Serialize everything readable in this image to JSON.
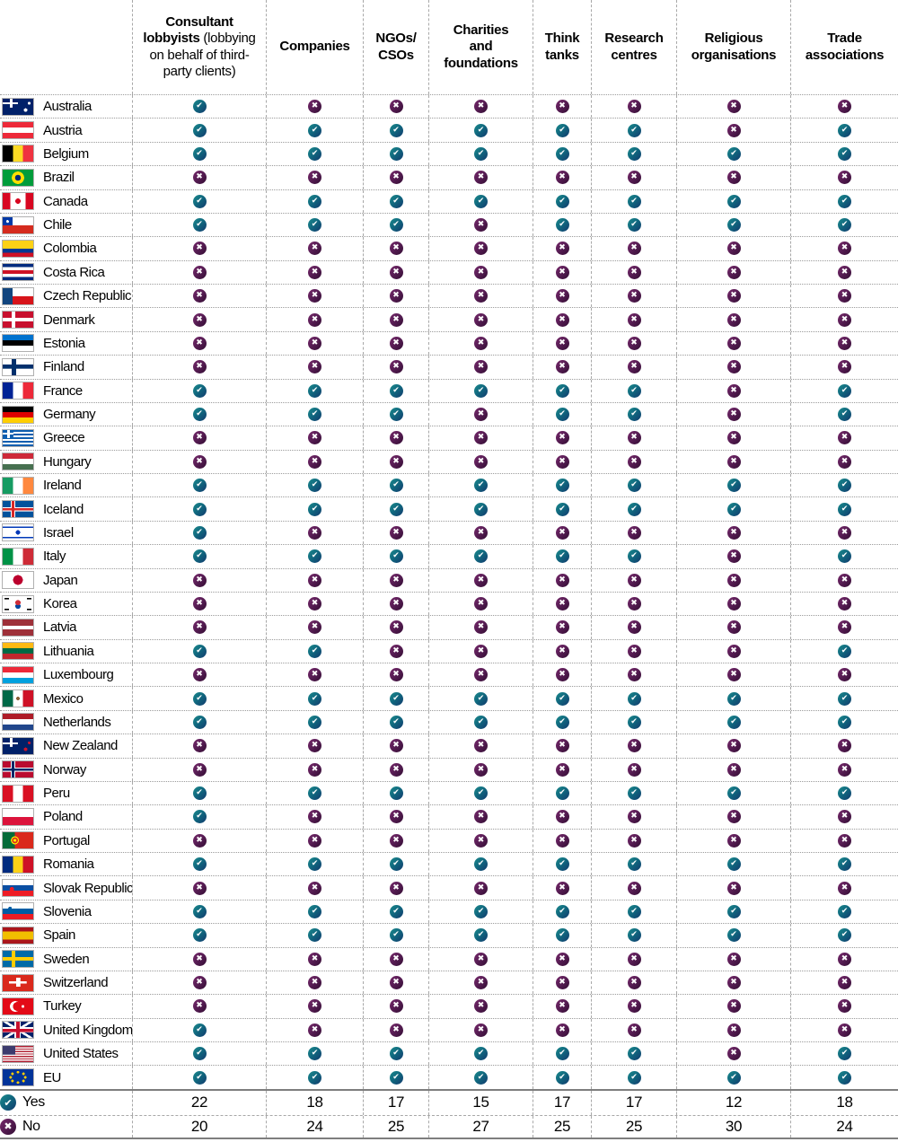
{
  "chart_data": {
    "type": "table",
    "title": "",
    "legend_position": "bottom",
    "columns": [
      {
        "id": "consultant-lobbyists",
        "label": "Consultant lobbyists",
        "sub": "(lobbying on behalf of third-party clients)"
      },
      {
        "id": "companies",
        "label": "Companies",
        "sub": ""
      },
      {
        "id": "ngos-csos",
        "label": "NGOs/\nCSOs",
        "sub": ""
      },
      {
        "id": "charities-foundations",
        "label": "Charities\nand\nfoundations",
        "sub": ""
      },
      {
        "id": "think-tanks",
        "label": "Think\ntanks",
        "sub": ""
      },
      {
        "id": "research-centres",
        "label": "Research\ncentres",
        "sub": ""
      },
      {
        "id": "religious-organisations",
        "label": "Religious\norganisations",
        "sub": ""
      },
      {
        "id": "trade-associations",
        "label": "Trade\nassociations",
        "sub": ""
      }
    ],
    "rows": [
      {
        "country": "Australia",
        "values": [
          true,
          false,
          false,
          false,
          false,
          false,
          false,
          false
        ],
        "flag_css": "linear-gradient(#fff 0 0) 0 30%/50% 12% no-repeat, linear-gradient(#fff 0 0) 26% 0/10% 55% no-repeat, radial-gradient(2px at 75% 70%, #fff 98%, rgba(0,0,0,0) 100%), radial-gradient(1.6px at 87% 28%, #fff 98%, rgba(0,0,0,0) 100%), #012169"
      },
      {
        "country": "Austria",
        "values": [
          true,
          true,
          true,
          true,
          true,
          true,
          false,
          true
        ],
        "flag_css": "linear-gradient(180deg, #ed2939 33.3%, #fff 33.3% 66.6%, #ed2939 66.6%)"
      },
      {
        "country": "Belgium",
        "values": [
          true,
          true,
          true,
          true,
          true,
          true,
          true,
          true
        ],
        "flag_css": "linear-gradient(90deg, #000 33.3%, #fdda24 33.3% 66.6%, #ef3340 66.6%)"
      },
      {
        "country": "Brazil",
        "values": [
          false,
          false,
          false,
          false,
          false,
          false,
          false,
          false
        ],
        "flag_css": "radial-gradient(7px at 50% 50%, #002776 45%, #ffdf00 48% 97%, rgba(0,0,0,0) 100%), #009c3b"
      },
      {
        "country": "Canada",
        "values": [
          true,
          true,
          true,
          true,
          true,
          true,
          true,
          true
        ],
        "flag_css": "radial-gradient(3px at 50% 50%, #d80621 97%, rgba(0,0,0,0) 100%), linear-gradient(90deg, #d80621 25%, #fff 25% 75%, #d80621 75%)"
      },
      {
        "country": "Chile",
        "values": [
          true,
          true,
          true,
          false,
          true,
          true,
          true,
          true
        ],
        "flag_css": "radial-gradient(1.6px at 16% 26%, #fff 98%, rgba(0,0,0,0) 100%), linear-gradient(90deg, #0039a6 33%, rgba(0,0,0,0) 33%) 0 0/100% 50% no-repeat, linear-gradient(180deg, #fff 50%, #d52b1e 50%)"
      },
      {
        "country": "Colombia",
        "values": [
          false,
          false,
          false,
          false,
          false,
          false,
          false,
          false
        ],
        "flag_css": "linear-gradient(180deg, #fcd116 50%, #003893 50% 75%, #ce1126 75%)"
      },
      {
        "country": "Costa Rica",
        "values": [
          false,
          false,
          false,
          false,
          false,
          false,
          false,
          false
        ],
        "flag_css": "linear-gradient(180deg, #002b7f 20%, #fff 20% 40%, #ce1126 40% 60%, #fff 60% 80%, #002b7f 80%)"
      },
      {
        "country": "Czech Republic",
        "values": [
          false,
          false,
          false,
          false,
          false,
          false,
          false,
          false
        ],
        "flag_css": "linear-gradient(90deg, #11457e 32%, rgba(0,0,0,0) 32%), linear-gradient(180deg, #fff 50%, #d7141a 50%)"
      },
      {
        "country": "Denmark",
        "values": [
          false,
          false,
          false,
          false,
          false,
          false,
          false,
          false
        ],
        "flag_css": "linear-gradient(#fff 0 0) 33% 0/13% 100% no-repeat, linear-gradient(#fff 0 0) 0 50%/100% 22% no-repeat, #c8102e"
      },
      {
        "country": "Estonia",
        "values": [
          false,
          false,
          false,
          false,
          false,
          false,
          false,
          false
        ],
        "flag_css": "linear-gradient(180deg, #0072ce 33.3%, #000 33.3% 66.6%, #fff 66.6%)"
      },
      {
        "country": "Finland",
        "values": [
          false,
          false,
          false,
          false,
          false,
          false,
          false,
          false
        ],
        "flag_css": "linear-gradient(#002f6c 0 0) 33% 0/15% 100% no-repeat, linear-gradient(#002f6c 0 0) 0 50%/100% 26% no-repeat, #fff"
      },
      {
        "country": "France",
        "values": [
          true,
          true,
          true,
          true,
          true,
          true,
          false,
          true
        ],
        "flag_css": "linear-gradient(90deg, #002395 33.3%, #fff 33.3% 66.6%, #ed2939 66.6%)"
      },
      {
        "country": "Germany",
        "values": [
          true,
          true,
          true,
          false,
          true,
          true,
          false,
          true
        ],
        "flag_css": "linear-gradient(180deg, #000 33.3%, #dd0000 33.3% 66.6%, #ffce00 66.6%)"
      },
      {
        "country": "Greece",
        "values": [
          false,
          false,
          false,
          false,
          false,
          false,
          false,
          false
        ],
        "flag_css": "linear-gradient(#fff 0 0) 17% 0/9% 50% no-repeat, linear-gradient(#fff 0 0) 0 21%/35% 11% no-repeat, linear-gradient(#0d5eaf 0 0) 0 0/35% 50% no-repeat, repeating-linear-gradient(180deg, #0d5eaf 0 11.1%, #fff 11.1% 22.2%)"
      },
      {
        "country": "Hungary",
        "values": [
          false,
          false,
          false,
          false,
          false,
          false,
          false,
          false
        ],
        "flag_css": "linear-gradient(180deg, #ce2939 33.3%, #fff 33.3% 66.6%, #477050 66.6%)"
      },
      {
        "country": "Ireland",
        "values": [
          true,
          true,
          true,
          true,
          true,
          true,
          true,
          true
        ],
        "flag_css": "linear-gradient(90deg, #169b62 33.3%, #fff 33.3% 66.6%, #ff883e 66.6%)"
      },
      {
        "country": "Iceland",
        "values": [
          true,
          true,
          true,
          true,
          true,
          true,
          true,
          true
        ],
        "flag_css": "linear-gradient(#d72828 0 0) 32% 0/9% 100% no-repeat, linear-gradient(#d72828 0 0) 0 50%/100% 14% no-repeat, linear-gradient(#fff 0 0) 30% 0/15% 100% no-repeat, linear-gradient(#fff 0 0) 0 50%/100% 26% no-repeat, #02529c"
      },
      {
        "country": "Israel",
        "values": [
          true,
          false,
          false,
          false,
          false,
          false,
          false,
          false
        ],
        "flag_css": "radial-gradient(2.5px at 50% 50%, #0038b8 97%, rgba(0,0,0,0) 100%), linear-gradient(180deg, rgba(0,0,0,0) 13%, #0038b8 13% 23%, rgba(0,0,0,0) 23% 77%, #0038b8 77% 87%, rgba(0,0,0,0) 87%), #fff"
      },
      {
        "country": "Italy",
        "values": [
          true,
          true,
          true,
          true,
          true,
          true,
          false,
          true
        ],
        "flag_css": "linear-gradient(90deg, #009246 33.3%, #fff 33.3% 66.6%, #ce2b37 66.6%)"
      },
      {
        "country": "Japan",
        "values": [
          false,
          false,
          false,
          false,
          false,
          false,
          false,
          false
        ],
        "flag_css": "radial-gradient(5.5px at 50% 50%, #bc002d 97%, rgba(0,0,0,0) 100%), #fff"
      },
      {
        "country": "Korea",
        "values": [
          false,
          false,
          false,
          false,
          false,
          false,
          false,
          false
        ],
        "flag_css": "radial-gradient(3px at 50% 40%, #cd2e3a 97%, rgba(0,0,0,0) 100%), radial-gradient(3px at 50% 62%, #0047a0 97%, rgba(0,0,0,0) 100%), linear-gradient(#000 0 0) 6% 12%/15% 9% no-repeat, linear-gradient(#000 0 0) 94% 12%/15% 9% no-repeat, linear-gradient(#000 0 0) 6% 88%/15% 9% no-repeat, linear-gradient(#000 0 0) 94% 88%/15% 9% no-repeat, #fff"
      },
      {
        "country": "Latvia",
        "values": [
          false,
          false,
          false,
          false,
          false,
          false,
          false,
          false
        ],
        "flag_css": "linear-gradient(180deg, #9e3039 40%, #fff 40% 60%, #9e3039 60%)"
      },
      {
        "country": "Lithuania",
        "values": [
          true,
          true,
          false,
          false,
          false,
          false,
          false,
          true
        ],
        "flag_css": "linear-gradient(180deg, #fdb913 33.3%, #006a44 33.3% 66.6%, #c1272d 66.6%)"
      },
      {
        "country": "Luxembourg",
        "values": [
          false,
          false,
          false,
          false,
          false,
          false,
          false,
          false
        ],
        "flag_css": "linear-gradient(180deg, #ed2939 33.3%, #fff 33.3% 66.6%, #00a1de 66.6%)"
      },
      {
        "country": "Mexico",
        "values": [
          true,
          true,
          true,
          true,
          true,
          true,
          true,
          true
        ],
        "flag_css": "radial-gradient(2px at 50% 50%, #8c6239 97%, rgba(0,0,0,0) 100%), linear-gradient(90deg, #006847 33.3%, #fff 33.3% 66.6%, #ce1126 66.6%)"
      },
      {
        "country": "Netherlands",
        "values": [
          true,
          true,
          true,
          true,
          true,
          true,
          true,
          true
        ],
        "flag_css": "linear-gradient(180deg, #ae1c28 33.3%, #fff 33.3% 66.6%, #21468b 66.6%)"
      },
      {
        "country": "New Zealand",
        "values": [
          false,
          false,
          false,
          false,
          false,
          false,
          false,
          false
        ],
        "flag_css": "linear-gradient(#fff 0 0) 0 30%/50% 12% no-repeat, linear-gradient(#fff 0 0) 26% 0/10% 55% no-repeat, radial-gradient(2px at 75% 70%, #cc142b 97%, rgba(0,0,0,0) 100%), radial-gradient(1.6px at 87% 30%, #cc142b 97%, rgba(0,0,0,0) 100%), #012169"
      },
      {
        "country": "Norway",
        "values": [
          false,
          false,
          false,
          false,
          false,
          false,
          false,
          false
        ],
        "flag_css": "linear-gradient(#002868 0 0) 32% 0/9% 100% no-repeat, linear-gradient(#002868 0 0) 0 50%/100% 14% no-repeat, linear-gradient(#fff 0 0) 30% 0/15% 100% no-repeat, linear-gradient(#fff 0 0) 0 50%/100% 26% no-repeat, #ba0c2f"
      },
      {
        "country": "Peru",
        "values": [
          true,
          true,
          true,
          true,
          true,
          true,
          true,
          true
        ],
        "flag_css": "linear-gradient(90deg, #d91023 33.3%, #fff 33.3% 66.6%, #d91023 66.6%)"
      },
      {
        "country": "Poland",
        "values": [
          true,
          false,
          false,
          false,
          false,
          false,
          false,
          false
        ],
        "flag_css": "linear-gradient(180deg, #fff 50%, #dc143c 50%)"
      },
      {
        "country": "Portugal",
        "values": [
          false,
          false,
          false,
          false,
          false,
          false,
          false,
          false
        ],
        "flag_css": "radial-gradient(4.5px at 40% 50%, #ffe900 35%, #da291c 40% 70%, #ffe900 75% 97%, rgba(0,0,0,0) 100%), linear-gradient(90deg, #046a38 40%, #da291c 40%)"
      },
      {
        "country": "Romania",
        "values": [
          true,
          true,
          true,
          true,
          true,
          true,
          true,
          true
        ],
        "flag_css": "linear-gradient(90deg, #002b7f 33.3%, #fcd116 33.3% 66.6%, #ce1126 66.6%)"
      },
      {
        "country": "Slovak Republic",
        "values": [
          false,
          false,
          false,
          false,
          false,
          false,
          false,
          false
        ],
        "flag_css": "radial-gradient(2.5px at 30% 58%, #ee1c25 97%, rgba(0,0,0,0) 100%), linear-gradient(180deg, #fff 33.3%, #0b4ea2 33.3% 66.6%, #ee1c25 66.6%)"
      },
      {
        "country": "Slovenia",
        "values": [
          true,
          true,
          true,
          true,
          true,
          true,
          true,
          true
        ],
        "flag_css": "radial-gradient(2px at 24% 32%, #005da4 97%, rgba(0,0,0,0) 100%), linear-gradient(180deg, #fff 33.3%, #005da4 33.3% 66.6%, #ed1c24 66.6%)"
      },
      {
        "country": "Spain",
        "values": [
          true,
          true,
          true,
          true,
          true,
          true,
          true,
          true
        ],
        "flag_css": "linear-gradient(180deg, #aa151b 25%, #f1bf00 25% 75%, #aa151b 75%)"
      },
      {
        "country": "Sweden",
        "values": [
          false,
          false,
          false,
          false,
          false,
          false,
          false,
          false
        ],
        "flag_css": "linear-gradient(#fecc02 0 0) 33% 0/13% 100% no-repeat, linear-gradient(#fecc02 0 0) 0 50%/100% 22% no-repeat, #006aa7"
      },
      {
        "country": "Switzerland",
        "values": [
          false,
          false,
          false,
          false,
          false,
          false,
          false,
          false
        ],
        "flag_css": "linear-gradient(#fff 0 0) 50% 50%/14% 58% no-repeat, linear-gradient(#fff 0 0) 50% 50%/58% 14% no-repeat, #da291c"
      },
      {
        "country": "Turkey",
        "values": [
          false,
          false,
          false,
          false,
          false,
          false,
          false,
          false
        ],
        "flag_css": "radial-gradient(5px at 48% 50%, #e30a17 96%, rgba(0,0,0,0) 100%), radial-gradient(6px at 41% 50%, #fff 96%, rgba(0,0,0,0) 100%), radial-gradient(1.6px at 66% 50%, #fff 96%, rgba(0,0,0,0) 100%), #e30a17"
      },
      {
        "country": "United Kingdom",
        "values": [
          true,
          false,
          false,
          false,
          false,
          false,
          false,
          false
        ],
        "flag_css": "linear-gradient(#c8102e 0 0) 50% 0/12% 100% no-repeat, linear-gradient(#c8102e 0 0) 0 50%/100% 20% no-repeat, linear-gradient(#fff 0 0) 50% 0/22% 100% no-repeat, linear-gradient(#fff 0 0) 0 50%/100% 34% no-repeat, linear-gradient(32deg, rgba(0,0,0,0) 46%, #fff 46% 54%, rgba(0,0,0,0) 54%), linear-gradient(148deg, rgba(0,0,0,0) 46%, #fff 46% 54%, rgba(0,0,0,0) 54%), #012169"
      },
      {
        "country": "United States",
        "values": [
          true,
          true,
          true,
          true,
          true,
          true,
          false,
          true
        ],
        "flag_css": "linear-gradient(#3c3b6e 0 0) 0 0/42% 54% no-repeat, repeating-linear-gradient(180deg, #b22234 0 7.7%, #fff 7.7% 15.4%)"
      },
      {
        "country": "EU",
        "values": [
          true,
          true,
          true,
          true,
          true,
          true,
          true,
          true
        ],
        "flag_css": "radial-gradient(1.5px at 50% 18%, #fc0 96%, rgba(0,0,0,0) 100%), radial-gradient(1.5px at 50% 82%, #fc0 96%, rgba(0,0,0,0) 100%), radial-gradient(1.5px at 32% 28%, #fc0 96%, rgba(0,0,0,0) 100%), radial-gradient(1.5px at 68% 28%, #fc0 96%, rgba(0,0,0,0) 100%), radial-gradient(1.5px at 32% 72%, #fc0 96%, rgba(0,0,0,0) 100%), radial-gradient(1.5px at 68% 72%, #fc0 96%, rgba(0,0,0,0) 100%), radial-gradient(1.5px at 26% 50%, #fc0 96%, rgba(0,0,0,0) 100%), radial-gradient(1.5px at 74% 50%, #fc0 96%, rgba(0,0,0,0) 100%), #039"
      }
    ],
    "totals": [
      {
        "id": "yes",
        "label": "Yes",
        "values": [
          22,
          18,
          17,
          15,
          17,
          17,
          12,
          18
        ]
      },
      {
        "id": "no",
        "label": "No",
        "values": [
          20,
          24,
          25,
          27,
          25,
          25,
          30,
          24
        ]
      }
    ]
  },
  "icons": {
    "yes": {
      "name": "check-icon",
      "glyph": "✔",
      "gradient": "linear-gradient(135deg, #1d8a8c 0%, #10697f 45%, #123a6d 100%)"
    },
    "no": {
      "name": "cross-icon",
      "glyph": "✖",
      "gradient": "linear-gradient(135deg, #76296a 0%, #591d55 45%, #330d33 100%)"
    }
  }
}
